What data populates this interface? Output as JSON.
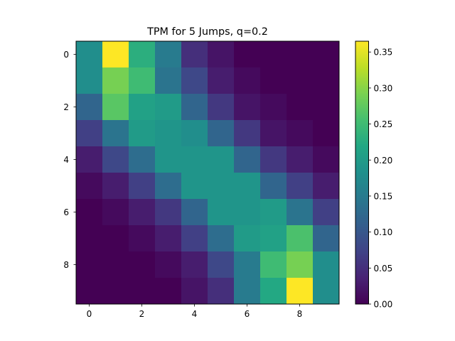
{
  "chart_data": {
    "type": "heatmap",
    "title": "TPM for 5 Jumps, q=0.2",
    "xlabel": "",
    "ylabel": "",
    "colormap": "viridis",
    "color_range": [
      0.0,
      0.365
    ],
    "rows": [
      0,
      1,
      2,
      3,
      4,
      5,
      6,
      7,
      8,
      9
    ],
    "cols": [
      0,
      1,
      2,
      3,
      4,
      5,
      6,
      7,
      8,
      9
    ],
    "x_ticks": [
      "0",
      "2",
      "4",
      "6",
      "8"
    ],
    "y_ticks": [
      "0",
      "2",
      "4",
      "6",
      "8"
    ],
    "colorbar_ticks": [
      "0.00",
      "0.05",
      "0.10",
      "0.15",
      "0.20",
      "0.25",
      "0.30",
      "0.35"
    ],
    "values": [
      [
        0.18,
        0.365,
        0.23,
        0.15,
        0.05,
        0.02,
        0.0,
        0.0,
        0.0,
        0.0
      ],
      [
        0.18,
        0.29,
        0.25,
        0.14,
        0.08,
        0.03,
        0.01,
        0.0,
        0.0,
        0.0
      ],
      [
        0.12,
        0.27,
        0.21,
        0.2,
        0.12,
        0.06,
        0.02,
        0.01,
        0.0,
        0.0
      ],
      [
        0.07,
        0.14,
        0.2,
        0.19,
        0.18,
        0.12,
        0.06,
        0.02,
        0.01,
        0.0
      ],
      [
        0.03,
        0.08,
        0.13,
        0.19,
        0.19,
        0.19,
        0.12,
        0.06,
        0.03,
        0.01
      ],
      [
        0.01,
        0.03,
        0.07,
        0.13,
        0.19,
        0.19,
        0.19,
        0.12,
        0.07,
        0.03
      ],
      [
        0.0,
        0.01,
        0.03,
        0.06,
        0.12,
        0.19,
        0.19,
        0.2,
        0.14,
        0.07
      ],
      [
        0.0,
        0.0,
        0.01,
        0.03,
        0.07,
        0.13,
        0.2,
        0.21,
        0.26,
        0.12
      ],
      [
        0.0,
        0.0,
        0.0,
        0.01,
        0.03,
        0.08,
        0.15,
        0.25,
        0.29,
        0.18
      ],
      [
        0.0,
        0.0,
        0.0,
        0.0,
        0.02,
        0.05,
        0.15,
        0.22,
        0.365,
        0.18
      ]
    ]
  }
}
